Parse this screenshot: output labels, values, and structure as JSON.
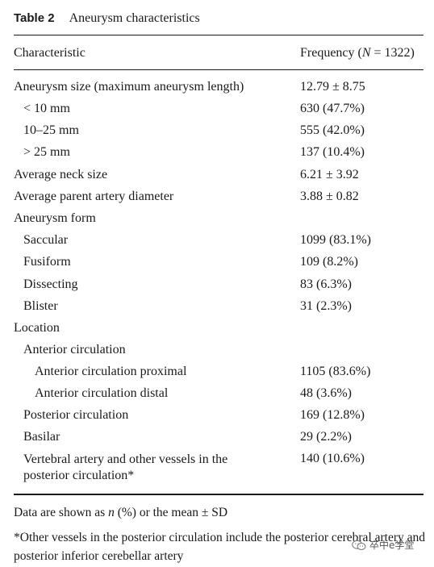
{
  "caption": {
    "label": "Table 2",
    "title": "Aneurysm characteristics"
  },
  "columns": {
    "characteristic": "Characteristic",
    "frequency_prefix": "Frequency (",
    "frequency_n": "N",
    "frequency_suffix": " = 1322)"
  },
  "rows": [
    {
      "label": "Aneurysm size (maximum aneurysm length)",
      "value": "12.79 ± 8.75",
      "indent": 0
    },
    {
      "label": "< 10 mm",
      "value": "630 (47.7%)",
      "indent": 1
    },
    {
      "label": "10–25 mm",
      "value": "555 (42.0%)",
      "indent": 1
    },
    {
      "label": "> 25 mm",
      "value": "137 (10.4%)",
      "indent": 1
    },
    {
      "label": "Average neck size",
      "value": "6.21 ± 3.92",
      "indent": 0
    },
    {
      "label": "Average parent artery diameter",
      "value": "3.88 ± 0.82",
      "indent": 0
    },
    {
      "label": "Aneurysm form",
      "value": "",
      "indent": 0
    },
    {
      "label": "Saccular",
      "value": "1099 (83.1%)",
      "indent": 1
    },
    {
      "label": "Fusiform",
      "value": "109 (8.2%)",
      "indent": 1
    },
    {
      "label": "Dissecting",
      "value": "83 (6.3%)",
      "indent": 1
    },
    {
      "label": "Blister",
      "value": "31 (2.3%)",
      "indent": 1
    },
    {
      "label": "Location",
      "value": "",
      "indent": 0
    },
    {
      "label": "Anterior circulation",
      "value": "",
      "indent": 1
    },
    {
      "label": "Anterior circulation proximal",
      "value": "1105 (83.6%)",
      "indent": 2
    },
    {
      "label": "Anterior circulation distal",
      "value": "48 (3.6%)",
      "indent": 2
    },
    {
      "label": "Posterior circulation",
      "value": "169 (12.8%)",
      "indent": 1
    },
    {
      "label": "Basilar",
      "value": "29 (2.2%)",
      "indent": 1
    },
    {
      "label": "Vertebral artery and other vessels in the posterior circulation*",
      "value": "140 (10.6%)",
      "indent": 1
    }
  ],
  "footnotes": {
    "note1_prefix": "Data are shown as ",
    "note1_n": "n",
    "note1_suffix": " (%) or the mean ± SD",
    "note2": "*Other vessels in the posterior circulation include the posterior cerebral artery and posterior inferior cerebellar artery"
  },
  "watermark": {
    "text": "卒中e学堂",
    "icon": "wechat-icon"
  }
}
